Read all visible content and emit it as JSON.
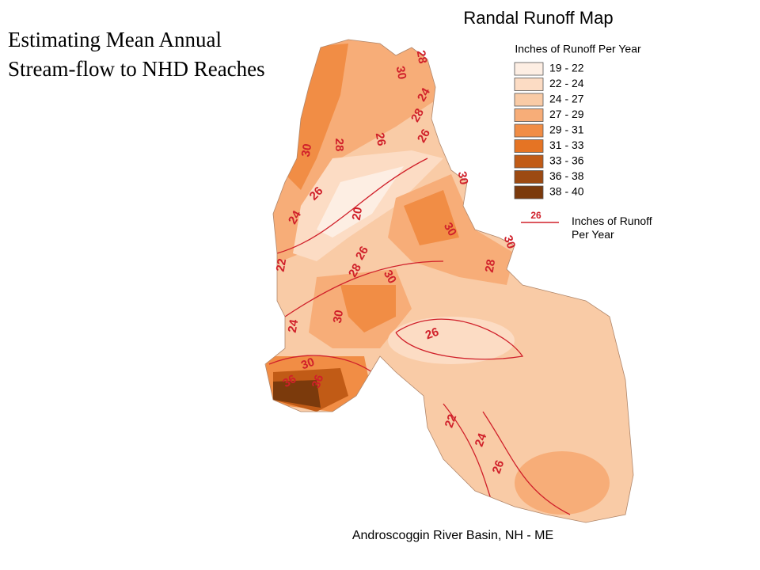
{
  "slide_title": "Estimating Mean Annual Stream-flow to NHD Reaches",
  "map": {
    "title": "Randal Runoff Map",
    "caption": "Androscoggin River Basin, NH - ME",
    "legend": {
      "title": "Inches of Runoff  Per Year",
      "items": [
        {
          "label": "19 - 22",
          "color": "#fdeee3"
        },
        {
          "label": "22 - 24",
          "color": "#fcdcc4"
        },
        {
          "label": "24 - 27",
          "color": "#f9cba6"
        },
        {
          "label": "27 - 29",
          "color": "#f7ad78"
        },
        {
          "label": "29 - 31",
          "color": "#f18d45"
        },
        {
          "label": "31 - 33",
          "color": "#e57424"
        },
        {
          "label": "33 - 36",
          "color": "#c15b16"
        },
        {
          "label": "36 - 38",
          "color": "#9c4a12"
        },
        {
          "label": "38 - 40",
          "color": "#7b3a0c"
        }
      ],
      "line_sample_label": "26",
      "line_label": "Inches of Runoff Per Year",
      "line_color": "#d0202a"
    },
    "contour_labels": [
      "28",
      "30",
      "24",
      "28",
      "26",
      "26",
      "28",
      "30",
      "26",
      "24",
      "20",
      "30",
      "30",
      "30",
      "22",
      "26",
      "28",
      "30",
      "28",
      "24",
      "30",
      "26",
      "30",
      "36",
      "36",
      "22",
      "24",
      "26"
    ]
  }
}
